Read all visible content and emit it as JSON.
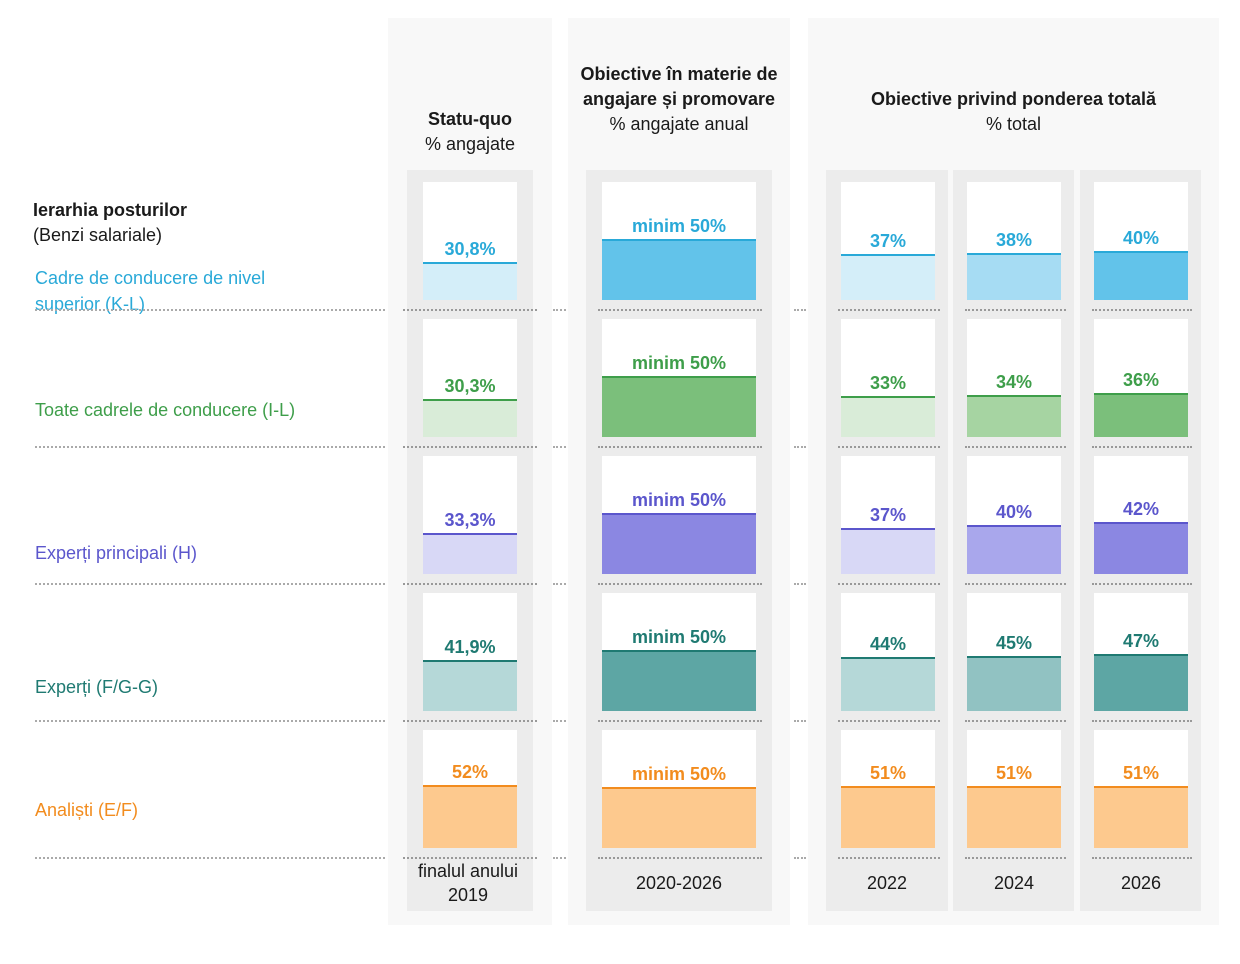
{
  "chart_data": {
    "type": "table",
    "row_axis": {
      "title": "Ierarhia posturilor",
      "subtitle": "(Benzi salariale)"
    },
    "rows": [
      {
        "label": "Cadre de conducere de nivel superior (K-L)",
        "color": "#29a9d8",
        "fill_light": "#d4eef9",
        "fill_med": "#a6dcf3",
        "fill_dark": "#62c3ea"
      },
      {
        "label": "Toate cadrele de conducere (I-L)",
        "color": "#3e9e4a",
        "fill_light": "#d9ecd8",
        "fill_med": "#a6d4a2",
        "fill_dark": "#7bbf7b"
      },
      {
        "label": "Experți principali (H)",
        "color": "#5b56cc",
        "fill_light": "#d8d8f6",
        "fill_med": "#a9a7ec",
        "fill_dark": "#8b87e2"
      },
      {
        "label": "Experți (F/G-G)",
        "color": "#1f7a72",
        "fill_light": "#b5d8d8",
        "fill_med": "#91c2c2",
        "fill_dark": "#5da6a4"
      },
      {
        "label": "Analiști (E/F)",
        "color": "#f28c1e",
        "fill_light": "#fdc98e",
        "fill_med": "#fdc98e",
        "fill_dark": "#fdc98e"
      }
    ],
    "groups": [
      {
        "title": "Statu-quo",
        "subtitle": "% angajate",
        "columns": [
          {
            "label": "finalul anului 2019",
            "labels": [
              "30,8%",
              "30,3%",
              "33,3%",
              "41,9%",
              "52%"
            ],
            "values": [
              30.8,
              30.3,
              33.3,
              41.9,
              52
            ]
          }
        ]
      },
      {
        "title": "Obiective în materie de angajare și promovare",
        "subtitle": "% angajate anual",
        "columns": [
          {
            "label": "2020-2026",
            "labels": [
              "minim 50%",
              "minim 50%",
              "minim 50%",
              "minim 50%",
              "minim 50%"
            ],
            "values": [
              50,
              50,
              50,
              50,
              50
            ]
          }
        ]
      },
      {
        "title": "Obiective privind ponderea totală",
        "subtitle": "% total",
        "columns": [
          {
            "label": "2022",
            "labels": [
              "37%",
              "33%",
              "37%",
              "44%",
              "51%"
            ],
            "values": [
              37,
              33,
              37,
              44,
              51
            ]
          },
          {
            "label": "2024",
            "labels": [
              "38%",
              "34%",
              "40%",
              "45%",
              "51%"
            ],
            "values": [
              38,
              34,
              40,
              45,
              51
            ]
          },
          {
            "label": "2026",
            "labels": [
              "40%",
              "36%",
              "42%",
              "47%",
              "51%"
            ],
            "values": [
              40,
              36,
              42,
              47,
              51
            ]
          }
        ]
      }
    ]
  }
}
